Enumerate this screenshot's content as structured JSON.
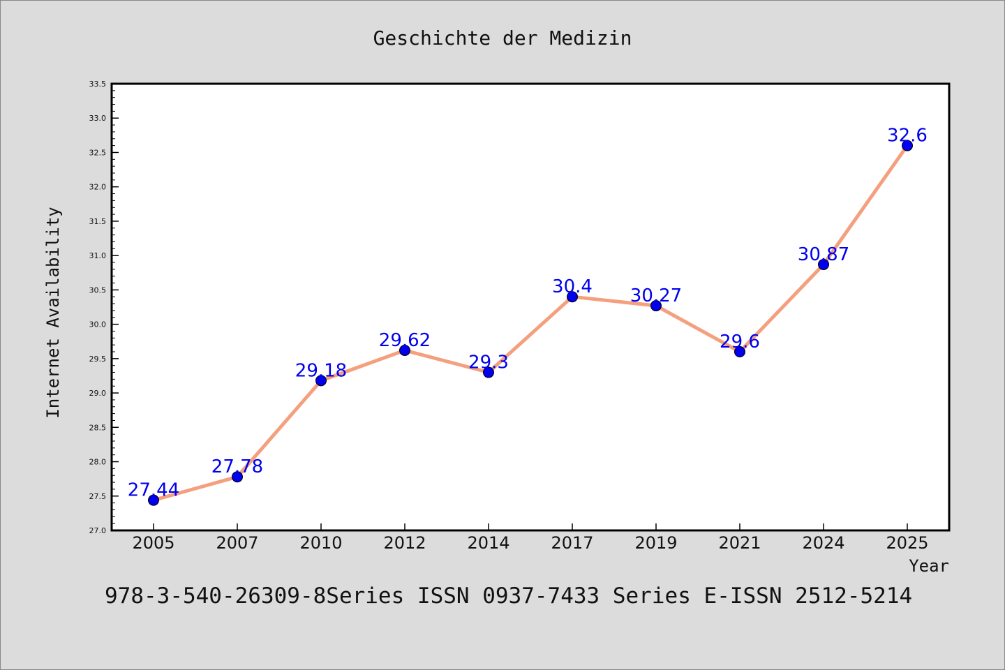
{
  "chart_data": {
    "type": "line",
    "title": "Geschichte der Medizin",
    "xlabel": "Year",
    "ylabel": "Internet Availability",
    "categories": [
      "2005",
      "2007",
      "2010",
      "2012",
      "2014",
      "2017",
      "2019",
      "2021",
      "2024",
      "2025"
    ],
    "values": [
      27.44,
      27.78,
      29.18,
      29.62,
      29.3,
      30.4,
      30.27,
      29.6,
      30.87,
      32.6
    ],
    "data_labels": [
      "27.44",
      "27.78",
      "29.18",
      "29.62",
      "29.3",
      "30.4",
      "30.27",
      "29.6",
      "30.87",
      "32.6"
    ],
    "ylim": [
      27.0,
      33.5
    ],
    "yticks": [
      "27.0",
      "27.5",
      "28.0",
      "28.5",
      "29.0",
      "29.5",
      "30.0",
      "30.5",
      "31.0",
      "31.5",
      "32.0",
      "32.5",
      "33.0",
      "33.5"
    ],
    "grid": false,
    "line_color": "#f4a07e",
    "marker_color": "#0000ee",
    "label_color": "#0000ee"
  },
  "footer_text": "978-3-540-26309-8Series ISSN 0937-7433 Series E-ISSN 2512-5214"
}
